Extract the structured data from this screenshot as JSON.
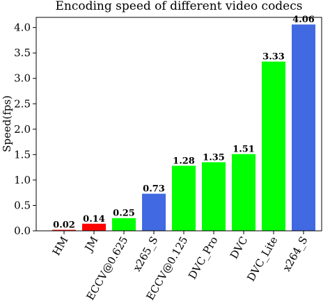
{
  "chart_data": {
    "type": "bar",
    "title": "Encoding speed of different video codecs",
    "y_label": "Speed(fps)",
    "categories": [
      "HM",
      "JM",
      "ECCV@0.625",
      "x265_S",
      "ECCV@0.125",
      "DVC_Pro",
      "DVC",
      "DVC_Lite",
      "x264_S"
    ],
    "values": [
      0.02,
      0.14,
      0.25,
      0.73,
      1.28,
      1.35,
      1.51,
      3.33,
      4.06
    ],
    "colors": [
      "#ff0000",
      "#ff0000",
      "#00ff00",
      "#4169e1",
      "#00ff00",
      "#00ff00",
      "#00ff00",
      "#00ff00",
      "#4169e1"
    ],
    "ylim": [
      0,
      4.2
    ],
    "yticks": [
      {
        "value": 0,
        "label": "0.0"
      },
      0.5,
      {
        "value": 1,
        "label": "1.0"
      },
      1.5,
      {
        "value": 2,
        "label": "2.0"
      },
      2.5,
      {
        "value": 3,
        "label": "3.0"
      },
      3.5,
      {
        "value": 4,
        "label": "4.0"
      }
    ],
    "grid": false
  }
}
